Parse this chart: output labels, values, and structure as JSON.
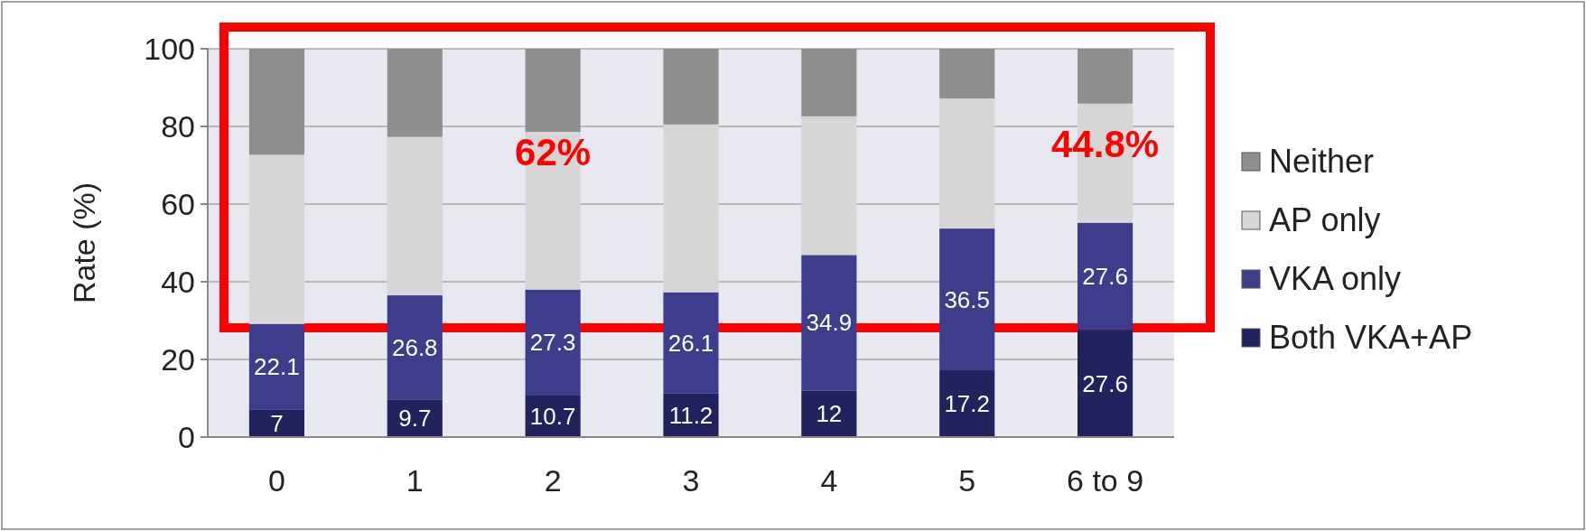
{
  "chart_data": {
    "type": "bar",
    "stacked": true,
    "ylabel": "Rate (%)",
    "categories": [
      "0",
      "1",
      "2",
      "3",
      "4",
      "5",
      "6 to 9"
    ],
    "series": [
      {
        "name": "Both VKA+AP",
        "color": "#22225e",
        "values": [
          7,
          9.7,
          10.7,
          11.2,
          12,
          17.2,
          27.6
        ],
        "value_labels": [
          "7",
          "9.7",
          "10.7",
          "11.2",
          "12",
          "17.2",
          "27.6"
        ]
      },
      {
        "name": "VKA only",
        "color": "#3d3d8c",
        "values": [
          22.1,
          26.8,
          27.3,
          26.1,
          34.9,
          36.5,
          27.6
        ],
        "value_labels": [
          "22.1",
          "26.8",
          "27.3",
          "26.1",
          "34.9",
          "36.5",
          "27.6"
        ]
      },
      {
        "name": "AP only",
        "color": "#d6d6d6",
        "values": [
          43.6,
          40.8,
          40.6,
          43.2,
          35.7,
          33.5,
          30.7
        ]
      },
      {
        "name": "Neither",
        "color": "#8e8e8e",
        "values": [
          27.3,
          22.7,
          21.4,
          19.5,
          17.4,
          12.8,
          14.1
        ]
      }
    ],
    "ylim": [
      0,
      100
    ],
    "yticks": [
      0,
      20,
      40,
      60,
      80,
      100
    ],
    "grid": "y",
    "legend": "right",
    "annotations": [
      "62%",
      "44.8%"
    ]
  }
}
